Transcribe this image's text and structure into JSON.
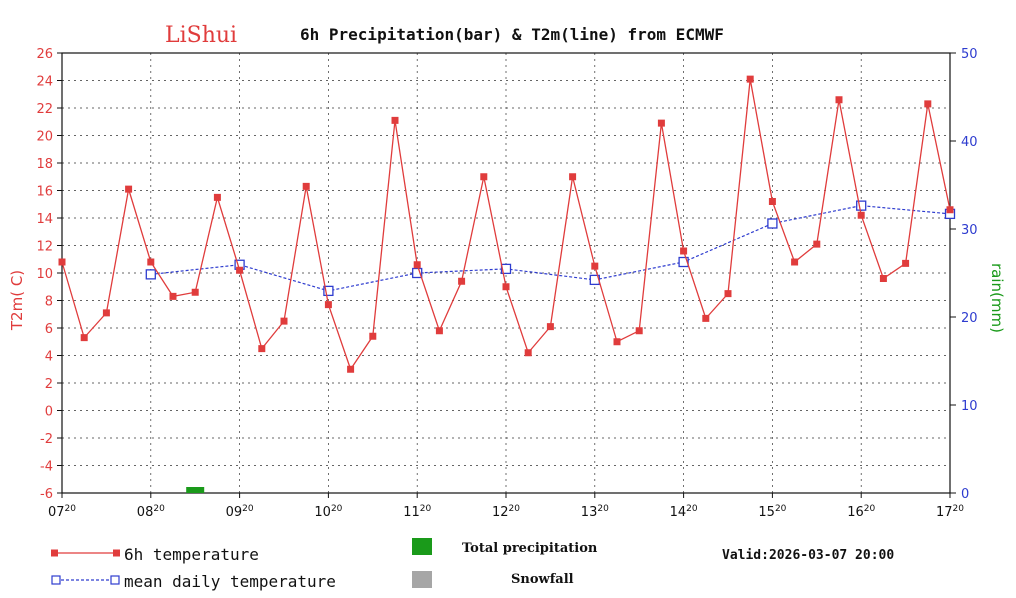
{
  "title": {
    "city": "LiShui",
    "text": "6h Precipitation(bar) & T2m(line) from ECMWF"
  },
  "colors": {
    "temperature": "#e03c3c",
    "mean": "#2e3ccf",
    "precip": "#1a9a1a",
    "snow": "#a6a6a6",
    "left_axis": "#e03c3c",
    "right_axis": "#2e3ccf",
    "right_label": "#1a9a1a"
  },
  "chart_data": {
    "type": "line",
    "title": "6h Precipitation(bar) & T2m(line) from ECMWF",
    "ylabel_left": "T2m( C)",
    "ylabel_right": "rain(mm)",
    "ylim_left": [
      -6,
      26
    ],
    "ylim_right": [
      0,
      50
    ],
    "yticks_left": [
      "26",
      "24",
      "22",
      "20",
      "18",
      "16",
      "14",
      "12",
      "10",
      "8",
      "6",
      "4",
      "2",
      "0",
      "-2",
      "-4",
      "-6"
    ],
    "yticks_right": [
      "50",
      "40",
      "30",
      "20",
      "10",
      "0"
    ],
    "x_ticks": [
      {
        "day": "07",
        "hour": "20"
      },
      {
        "day": "08",
        "hour": "20"
      },
      {
        "day": "09",
        "hour": "20"
      },
      {
        "day": "10",
        "hour": "20"
      },
      {
        "day": "11",
        "hour": "20"
      },
      {
        "day": "12",
        "hour": "20"
      },
      {
        "day": "13",
        "hour": "20"
      },
      {
        "day": "14",
        "hour": "20"
      },
      {
        "day": "15",
        "hour": "20"
      },
      {
        "day": "16",
        "hour": "20"
      },
      {
        "day": "17",
        "hour": "20"
      }
    ],
    "grid": true,
    "series": [
      {
        "name": "6h temperature",
        "style": "solid-filled-square",
        "x_days": [
          0,
          0.25,
          0.5,
          0.75,
          1,
          1.25,
          1.5,
          1.75,
          2,
          2.25,
          2.5,
          2.75,
          3,
          3.25,
          3.5,
          3.75,
          4,
          4.25,
          4.5,
          4.75,
          5,
          5.25,
          5.5,
          5.75,
          6,
          6.25,
          6.5,
          6.75,
          7,
          7.25,
          7.5,
          7.75,
          8,
          8.25,
          8.5,
          8.75,
          9,
          9.25,
          9.5,
          9.75,
          10
        ],
        "values": [
          10.8,
          5.3,
          7.1,
          16.1,
          10.8,
          8.3,
          8.6,
          15.5,
          10.2,
          4.5,
          6.5,
          16.3,
          7.7,
          3.0,
          5.4,
          21.1,
          10.6,
          5.8,
          9.4,
          17.0,
          9.0,
          4.2,
          6.1,
          17.0,
          10.5,
          5.0,
          5.8,
          20.9,
          11.6,
          6.7,
          8.5,
          24.1,
          15.2,
          10.8,
          12.1,
          22.6,
          14.2,
          9.6,
          10.7,
          22.3,
          14.6
        ]
      },
      {
        "name": "mean daily temperature",
        "style": "dashed-open-square",
        "x_days": [
          1,
          2,
          3,
          4,
          5,
          6,
          7,
          8,
          9,
          10
        ],
        "values": [
          9.9,
          10.6,
          8.7,
          10.0,
          10.3,
          9.5,
          10.8,
          13.6,
          14.9,
          14.3
        ]
      }
    ],
    "precipitation_bars": [
      {
        "x_days": 1.5,
        "value_mm": 0.4,
        "kind": "total"
      }
    ],
    "snowfall_bars": []
  },
  "legend": {
    "temp_label": "6h temperature",
    "mean_label": "mean daily temperature",
    "precip_label": "Total precipitation",
    "snow_label": "Snowfall"
  },
  "valid": "Valid:2026-03-07 20:00"
}
